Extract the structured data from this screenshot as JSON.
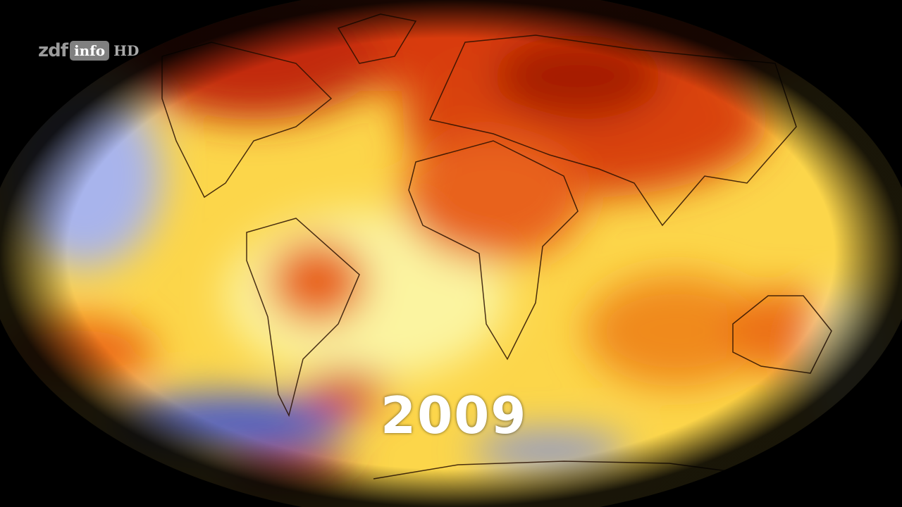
{
  "broadcaster_logo": {
    "zdf": "zdf",
    "info": "info",
    "hd": "HD"
  },
  "year_label": "2009",
  "colors": {
    "warm_dark": "#8b0a00",
    "warm": "#e8501a",
    "orange": "#f7a21a",
    "yellow": "#fde84a",
    "pale": "#fbf8c8",
    "cool": "#6a78d8",
    "cool_dark": "#2a3aa0"
  }
}
